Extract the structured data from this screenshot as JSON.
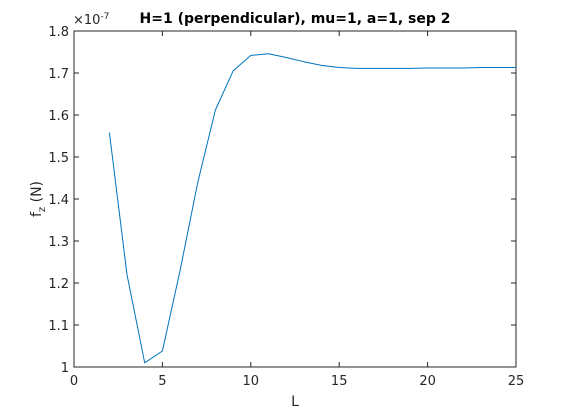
{
  "chart_data": {
    "type": "line",
    "title": "H=1 (perpendicular), mu=1, a=1, sep 2",
    "xlabel": "L",
    "ylabel_main": "f",
    "ylabel_sub": "z",
    "ylabel_unit": " (N)",
    "exponent_base": "×10",
    "exponent_power": "-7",
    "xlim": [
      0,
      25
    ],
    "ylim": [
      1.0,
      1.8
    ],
    "x_ticks": [
      "0",
      "5",
      "10",
      "15",
      "20",
      "25"
    ],
    "y_ticks": [
      "1",
      "1.1",
      "1.2",
      "1.3",
      "1.4",
      "1.5",
      "1.6",
      "1.7",
      "1.8"
    ],
    "grid": false,
    "line_color": "#0072BD",
    "series": [
      {
        "x": [
          2,
          3,
          4,
          5,
          6,
          7,
          8,
          9,
          10,
          11,
          12,
          13,
          14,
          15,
          16,
          17,
          18,
          19,
          20,
          21,
          22,
          23,
          24,
          25
        ],
        "values": [
          1.558,
          1.22,
          1.01,
          1.038,
          1.23,
          1.44,
          1.612,
          1.705,
          1.742,
          1.746,
          1.737,
          1.727,
          1.718,
          1.713,
          1.711,
          1.711,
          1.711,
          1.711,
          1.712,
          1.712,
          1.712,
          1.713,
          1.713,
          1.713
        ]
      }
    ]
  }
}
